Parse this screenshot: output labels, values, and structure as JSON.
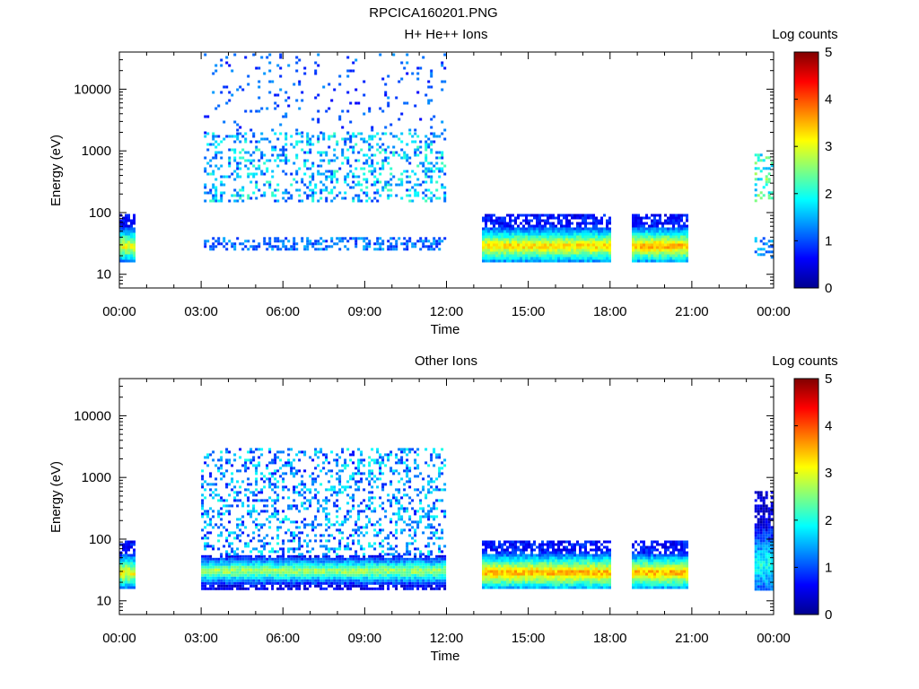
{
  "figure_title": "RPCICA160201.PNG",
  "chart_data": [
    {
      "type": "heatmap",
      "title": "H+ He++ Ions",
      "xlabel": "Time",
      "ylabel": "Energy (eV)",
      "x_ticks": [
        "00:00",
        "03:00",
        "06:00",
        "09:00",
        "12:00",
        "15:00",
        "18:00",
        "21:00",
        "00:00"
      ],
      "y_ticks": [
        "10",
        "100",
        "1000",
        "10000"
      ],
      "y_scale": "log",
      "ylim": [
        6,
        40000
      ],
      "xlim_hours": [
        0,
        24
      ],
      "colorbar": {
        "label": "Log counts",
        "ticks": [
          "0",
          "1",
          "2",
          "3",
          "4",
          "5"
        ],
        "range": [
          0,
          5
        ]
      },
      "regions": [
        {
          "start_h": 0.0,
          "end_h": 0.55,
          "emin": 17,
          "emax": 95,
          "peak_e": 30,
          "peak_level": 3.2,
          "kind": "band"
        },
        {
          "start_h": 3.1,
          "end_h": 11.9,
          "emin": 25,
          "emax": 40,
          "peak_e": 32,
          "peak_level": 1.0,
          "kind": "sparse_band"
        },
        {
          "start_h": 3.1,
          "end_h": 11.9,
          "emin": 150,
          "emax": 2000,
          "peak_e": 600,
          "peak_level": 1.4,
          "kind": "scatter"
        },
        {
          "start_h": 3.1,
          "end_h": 11.9,
          "emin": 2000,
          "emax": 38000,
          "peak_e": 10000,
          "peak_level": 0.6,
          "kind": "sparse"
        },
        {
          "start_h": 13.3,
          "end_h": 18.0,
          "emin": 17,
          "emax": 95,
          "peak_e": 30,
          "peak_level": 3.4,
          "kind": "band"
        },
        {
          "start_h": 18.8,
          "end_h": 20.8,
          "emin": 17,
          "emax": 95,
          "peak_e": 30,
          "peak_level": 3.6,
          "kind": "band"
        },
        {
          "start_h": 23.3,
          "end_h": 23.95,
          "emin": 150,
          "emax": 900,
          "peak_e": 350,
          "peak_level": 2.0,
          "kind": "scatter"
        },
        {
          "start_h": 23.3,
          "end_h": 23.95,
          "emin": 18,
          "emax": 40,
          "peak_e": 28,
          "peak_level": 1.2,
          "kind": "sparse_band"
        }
      ]
    },
    {
      "type": "heatmap",
      "title": "Other Ions",
      "xlabel": "Time",
      "ylabel": "Energy (eV)",
      "x_ticks": [
        "00:00",
        "03:00",
        "06:00",
        "09:00",
        "12:00",
        "15:00",
        "18:00",
        "21:00",
        "00:00"
      ],
      "y_ticks": [
        "10",
        "100",
        "1000",
        "10000"
      ],
      "y_scale": "log",
      "ylim": [
        6,
        40000
      ],
      "xlim_hours": [
        0,
        24
      ],
      "colorbar": {
        "label": "Log counts",
        "ticks": [
          "0",
          "1",
          "2",
          "3",
          "4",
          "5"
        ],
        "range": [
          0,
          5
        ]
      },
      "regions": [
        {
          "start_h": 0.0,
          "end_h": 0.55,
          "emin": 17,
          "emax": 95,
          "peak_e": 30,
          "peak_level": 3.2,
          "kind": "band"
        },
        {
          "start_h": 3.0,
          "end_h": 11.9,
          "emin": 16,
          "emax": 55,
          "peak_e": 32,
          "peak_level": 2.8,
          "kind": "band"
        },
        {
          "start_h": 3.0,
          "end_h": 11.9,
          "emin": 55,
          "emax": 3000,
          "peak_e": 200,
          "peak_level": 1.2,
          "kind": "scatter"
        },
        {
          "start_h": 13.3,
          "end_h": 18.0,
          "emin": 16,
          "emax": 95,
          "peak_e": 30,
          "peak_level": 3.6,
          "kind": "band"
        },
        {
          "start_h": 18.8,
          "end_h": 20.8,
          "emin": 17,
          "emax": 95,
          "peak_e": 30,
          "peak_level": 3.6,
          "kind": "band"
        },
        {
          "start_h": 23.3,
          "end_h": 23.95,
          "emin": 16,
          "emax": 600,
          "peak_e": 40,
          "peak_level": 2.0,
          "kind": "band"
        }
      ]
    }
  ]
}
